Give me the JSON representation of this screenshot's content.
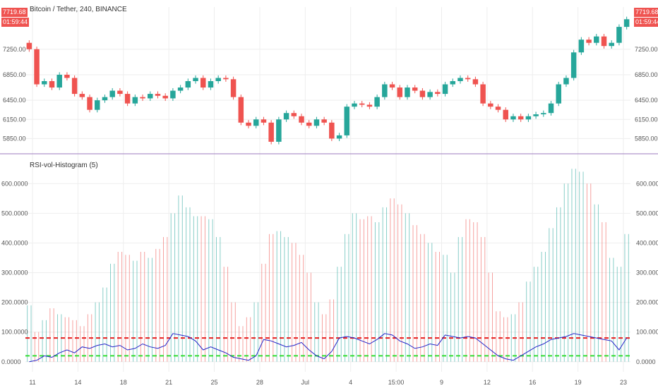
{
  "header": {
    "title": "Bitcoin / Tether, 240, BINANCE"
  },
  "indicator": {
    "title": "RSI-vol-Histogram (5)"
  },
  "price_tags": {
    "left_price": "7719.68",
    "left_time": "01:59:44",
    "right_price": "7719.68",
    "right_time": "01:59:44"
  },
  "price_axis": [
    "7250.00",
    "6850.00",
    "6450.00",
    "6150.00",
    "5850.00"
  ],
  "ind_axis": [
    "600.0000",
    "500.0000",
    "400.0000",
    "300.0000",
    "200.0000",
    "100.0000",
    "0.0000"
  ],
  "date_axis": [
    "11",
    "14",
    "18",
    "21",
    "25",
    "28",
    "Jul",
    "4",
    "15:00",
    "9",
    "12",
    "16",
    "19",
    "23"
  ],
  "colors": {
    "up": "#26a69a",
    "down": "#ef5350",
    "rsi": "#2323c8",
    "upper": "#e61e1e",
    "lower": "#33dd33",
    "divider": "#9c7bbf",
    "grid": "#eeeeee"
  },
  "chart_data": [
    {
      "type": "candlestick",
      "title": "Bitcoin / Tether, 240, BINANCE",
      "ylim": [
        5700,
        7800
      ],
      "close": [
        7250,
        6700,
        6750,
        6650,
        6850,
        6800,
        6550,
        6500,
        6300,
        6450,
        6500,
        6600,
        6550,
        6400,
        6500,
        6480,
        6550,
        6520,
        6480,
        6600,
        6650,
        6750,
        6800,
        6650,
        6750,
        6800,
        6780,
        6500,
        6100,
        6050,
        6150,
        6100,
        5800,
        6150,
        6250,
        6200,
        6100,
        6050,
        6150,
        6100,
        5850,
        5900,
        6350,
        6400,
        6380,
        6350,
        6500,
        6700,
        6650,
        6500,
        6650,
        6600,
        6500,
        6580,
        6550,
        6700,
        6750,
        6800,
        6780,
        6700,
        6400,
        6350,
        6300,
        6150,
        6200,
        6150,
        6200,
        6230,
        6250,
        6400,
        6700,
        6800,
        7200,
        7400,
        7350,
        7450,
        7300,
        7350,
        7600,
        7719.68
      ],
      "histogram": [
        190,
        100,
        140,
        180,
        160,
        150,
        140,
        120,
        160,
        200,
        250,
        330,
        370,
        360,
        340,
        370,
        350,
        380,
        420,
        500,
        560,
        520,
        490,
        490,
        480,
        420,
        320,
        200,
        120,
        150,
        200,
        330,
        430,
        440,
        420,
        400,
        360,
        300,
        200,
        160,
        210,
        320,
        430,
        500,
        480,
        490,
        470,
        520,
        550,
        530,
        500,
        460,
        430,
        400,
        370,
        360,
        300,
        420,
        480,
        470,
        420,
        300,
        170,
        150,
        160,
        200,
        270,
        320,
        370,
        450,
        520,
        600,
        650,
        640,
        600,
        530,
        470,
        350,
        320,
        430
      ],
      "rsi": [
        0,
        5,
        20,
        15,
        30,
        40,
        30,
        50,
        45,
        55,
        60,
        50,
        55,
        40,
        45,
        60,
        50,
        45,
        55,
        95,
        90,
        85,
        70,
        40,
        50,
        40,
        30,
        15,
        10,
        5,
        20,
        75,
        70,
        60,
        50,
        55,
        65,
        40,
        20,
        10,
        35,
        80,
        85,
        80,
        70,
        60,
        75,
        95,
        90,
        70,
        60,
        45,
        50,
        60,
        55,
        90,
        85,
        80,
        85,
        80,
        60,
        40,
        20,
        10,
        5,
        20,
        35,
        50,
        60,
        75,
        80,
        85,
        95,
        90,
        85,
        80,
        75,
        70,
        40,
        80
      ],
      "levels": {
        "upper": 80,
        "lower": 20
      }
    }
  ]
}
